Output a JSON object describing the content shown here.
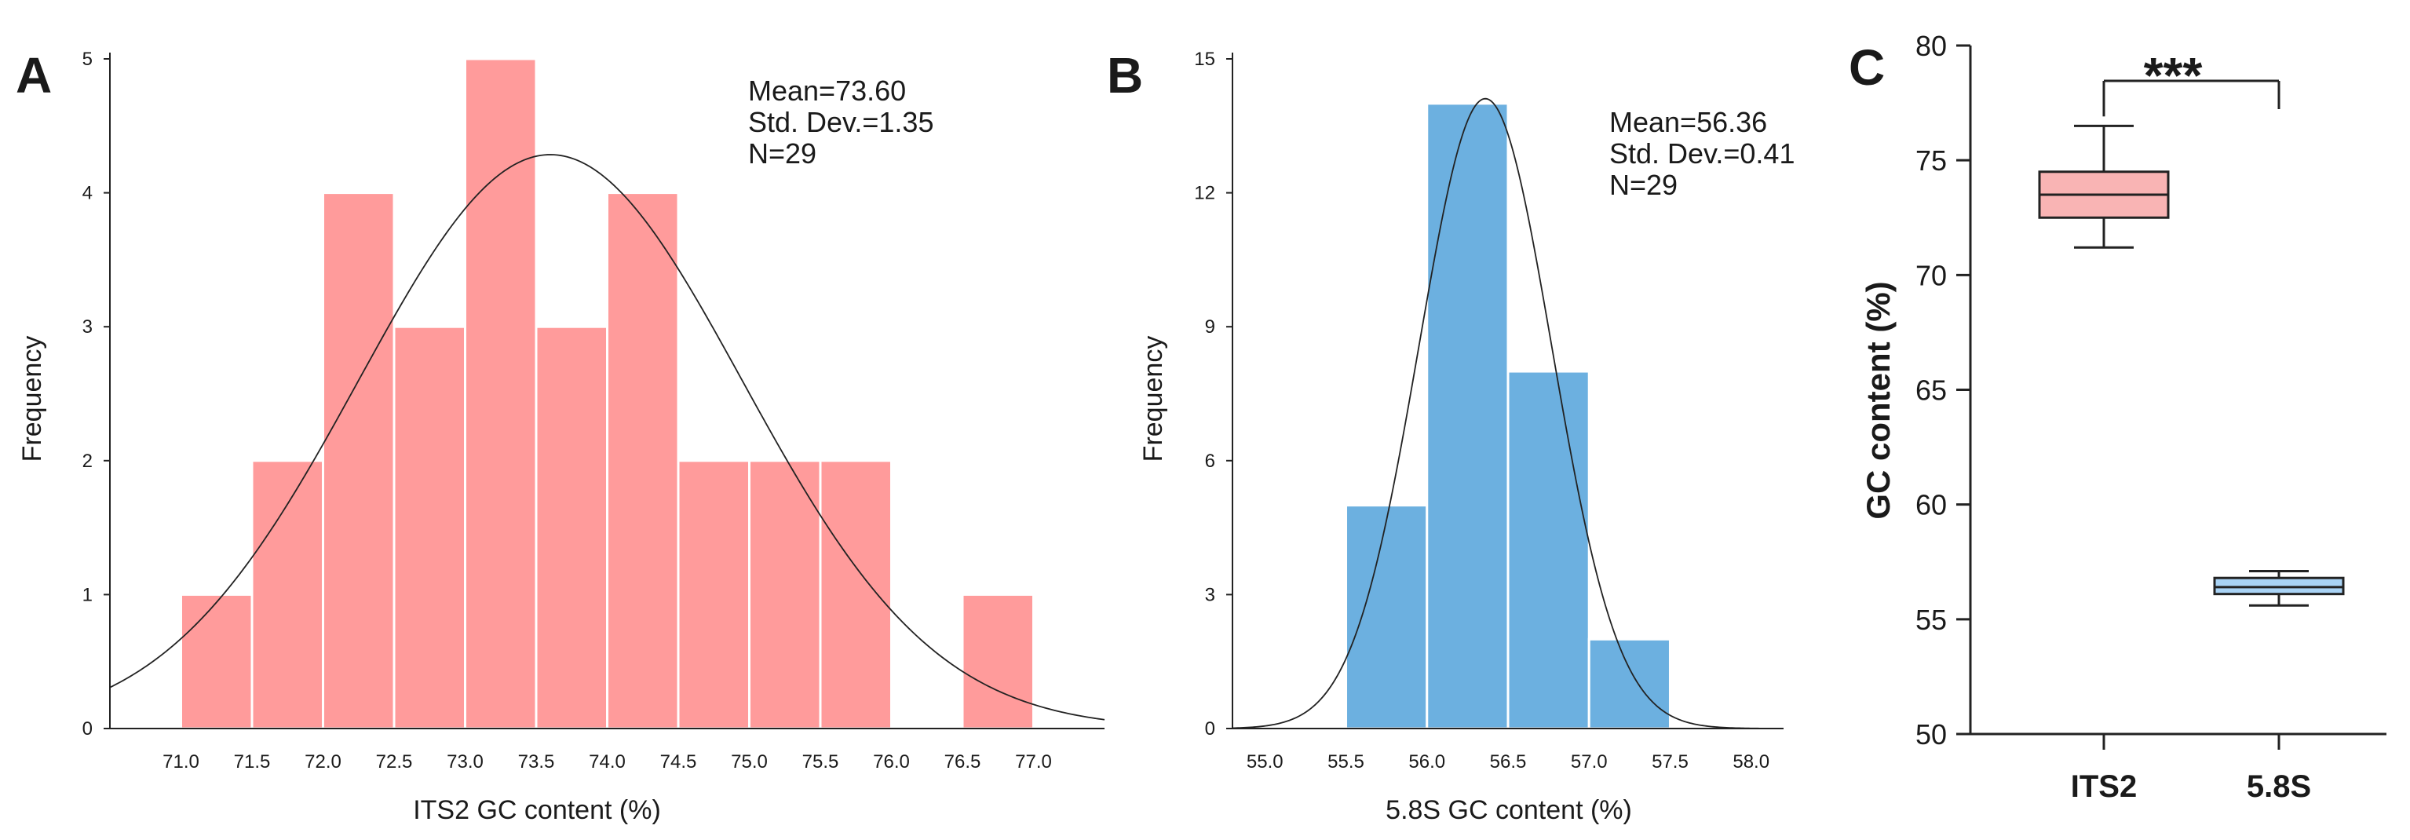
{
  "chart_data": [
    {
      "type": "bar",
      "panel": "A",
      "title": "",
      "xlabel": "ITS2 GC content (%)",
      "ylabel": "Frequency",
      "xlim": [
        70.5,
        77.5
      ],
      "ylim": [
        0,
        5
      ],
      "x_ticks": [
        "71.0",
        "71.5",
        "72.0",
        "72.5",
        "73.0",
        "73.5",
        "74.0",
        "74.5",
        "75.0",
        "75.5",
        "76.0",
        "76.5",
        "77.0"
      ],
      "y_ticks": [
        "0",
        "1",
        "2",
        "3",
        "4",
        "5"
      ],
      "bins": [
        {
          "start": 71.0,
          "end": 71.5,
          "value": 1
        },
        {
          "start": 71.5,
          "end": 72.0,
          "value": 2
        },
        {
          "start": 72.0,
          "end": 72.5,
          "value": 4
        },
        {
          "start": 72.5,
          "end": 73.0,
          "value": 3
        },
        {
          "start": 73.0,
          "end": 73.5,
          "value": 5
        },
        {
          "start": 73.5,
          "end": 74.0,
          "value": 3
        },
        {
          "start": 74.0,
          "end": 74.5,
          "value": 4
        },
        {
          "start": 74.5,
          "end": 75.0,
          "value": 2
        },
        {
          "start": 75.0,
          "end": 75.5,
          "value": 2
        },
        {
          "start": 75.5,
          "end": 76.0,
          "value": 2
        },
        {
          "start": 76.5,
          "end": 77.0,
          "value": 1
        }
      ],
      "normal_curve": {
        "mean": 73.6,
        "sd": 1.35,
        "n": 29,
        "bin_width": 0.5
      },
      "stats": [
        "Mean=73.60",
        "Std. Dev.=1.35",
        "N=29"
      ],
      "bar_color": "#ff9b9b",
      "grid": false
    },
    {
      "type": "bar",
      "panel": "B",
      "title": "",
      "xlabel": "5.8S GC content (%)",
      "ylabel": "Frequency",
      "xlim": [
        54.8,
        58.2
      ],
      "ylim": [
        0,
        15
      ],
      "x_ticks": [
        "55.0",
        "55.5",
        "56.0",
        "56.5",
        "57.0",
        "57.5",
        "58.0"
      ],
      "y_ticks": [
        "0",
        "3",
        "6",
        "9",
        "12",
        "15"
      ],
      "bins": [
        {
          "start": 55.5,
          "end": 56.0,
          "value": 5
        },
        {
          "start": 56.0,
          "end": 56.5,
          "value": 14
        },
        {
          "start": 56.5,
          "end": 57.0,
          "value": 8
        },
        {
          "start": 57.0,
          "end": 57.5,
          "value": 2
        }
      ],
      "normal_curve": {
        "mean": 56.36,
        "sd": 0.41,
        "n": 29,
        "bin_width": 0.5
      },
      "stats": [
        "Mean=56.36",
        "Std. Dev.=0.41",
        "N=29"
      ],
      "bar_color": "#6cb0e0",
      "grid": false
    },
    {
      "type": "box",
      "panel": "C",
      "title": "",
      "xlabel": "",
      "ylabel": "GC content (%)",
      "ylim": [
        50,
        80
      ],
      "y_ticks": [
        "50",
        "55",
        "60",
        "65",
        "70",
        "75",
        "80"
      ],
      "categories": [
        "ITS2",
        "5.8S"
      ],
      "boxes": [
        {
          "name": "ITS2",
          "min": 71.2,
          "q1": 72.5,
          "median": 73.5,
          "q3": 74.5,
          "max": 76.5,
          "color": "#f9b4b4"
        },
        {
          "name": "5.8S",
          "min": 55.6,
          "q1": 56.1,
          "median": 56.4,
          "q3": 56.8,
          "max": 57.1,
          "color": "#a9d3f5"
        }
      ],
      "significance": "***",
      "grid": false
    }
  ]
}
